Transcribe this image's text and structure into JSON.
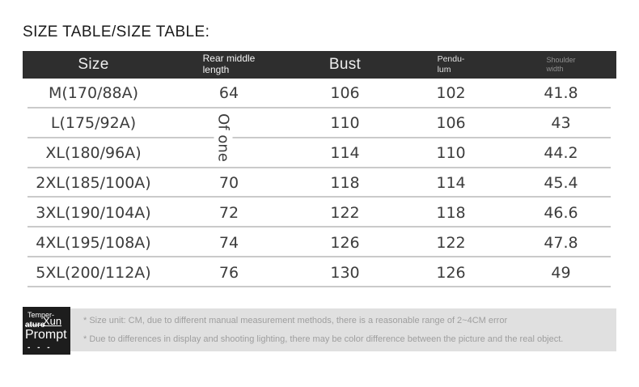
{
  "title": "SIZE TABLE/SIZE TABLE:",
  "table": {
    "header": {
      "size": "Size",
      "rear_middle_length": [
        "Rear middle",
        "length"
      ],
      "bust": "Bust",
      "pendulum": [
        "Pendu-",
        "lum"
      ],
      "shoulder_width": [
        "Shoulder",
        "width"
      ]
    },
    "merged_cell_text": "Of one",
    "merged_cell_note_rows": "L(175/92A) and XL(180/96A)",
    "rows": [
      {
        "size": "M(170/88A)",
        "rear": "64",
        "bust": "106",
        "pendulum": "102",
        "shoulder": "41.8"
      },
      {
        "size": "L(175/92A)",
        "rear": "",
        "bust": "110",
        "pendulum": "106",
        "shoulder": "43"
      },
      {
        "size": "XL(180/96A)",
        "rear": "",
        "bust": "114",
        "pendulum": "110",
        "shoulder": "44.2"
      },
      {
        "size": "2XL(185/100A)",
        "rear": "70",
        "bust": "118",
        "pendulum": "114",
        "shoulder": "45.4"
      },
      {
        "size": "3XL(190/104A)",
        "rear": "72",
        "bust": "122",
        "pendulum": "118",
        "shoulder": "46.6"
      },
      {
        "size": "4XL(195/108A)",
        "rear": "74",
        "bust": "126",
        "pendulum": "122",
        "shoulder": "47.8"
      },
      {
        "size": "5XL(200/112A)",
        "rear": "76",
        "bust": "130",
        "pendulum": "126",
        "shoulder": "49"
      }
    ]
  },
  "notes": [
    "* Size unit: CM, due to different manual measurement methods, there is a reasonable range of 2~4CM error",
    "* Due to differences in display and shooting lighting, there may be color difference between the picture and the real object."
  ],
  "prompt_box": {
    "word1": "Temper-",
    "word2": "ature",
    "overlay_word": "Xun",
    "word3": "Prompt",
    "dashes": "- - -"
  },
  "colors": {
    "header_bg": "#2e2e2e",
    "header_text": "#eeeeee",
    "muted_header_text": "#909090",
    "body_text": "#3c3c3c",
    "row_divider": "#cacaca",
    "notes_bg": "#e0e0e0",
    "notes_text": "#9e9e9e",
    "prompt_bg": "#1d1d1d",
    "prompt_text": "#ffffff"
  }
}
